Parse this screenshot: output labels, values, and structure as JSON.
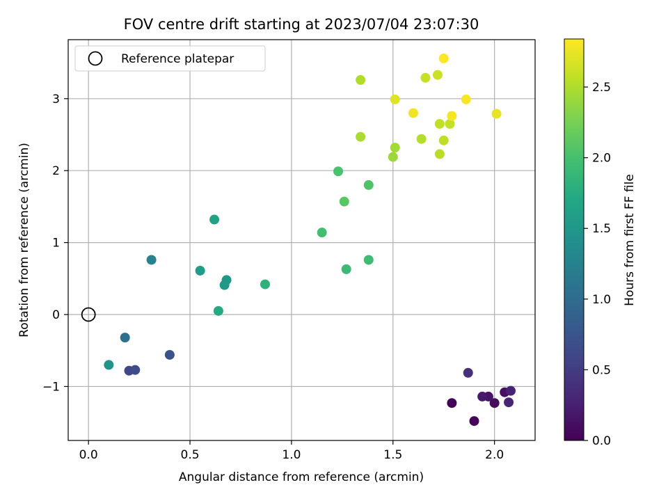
{
  "chart_data": {
    "type": "scatter",
    "title": "FOV centre drift starting at 2023/07/04 23:07:30",
    "xlabel": "Angular distance from reference (arcmin)",
    "ylabel": "Rotation from reference (arcmin)",
    "xlim": [
      -0.1,
      2.2
    ],
    "ylim": [
      -1.75,
      3.82
    ],
    "xticks": [
      0.0,
      0.5,
      1.0,
      1.5,
      2.0
    ],
    "xtick_labels": [
      "0.0",
      "0.5",
      "1.0",
      "1.5",
      "2.0"
    ],
    "yticks": [
      -1,
      0,
      1,
      2,
      3
    ],
    "ytick_labels": [
      "−1",
      "0",
      "1",
      "2",
      "3"
    ],
    "grid": true,
    "legend": {
      "position": "top-left",
      "entries": [
        "Reference platepar"
      ]
    },
    "reference_point": {
      "x": 0.0,
      "y": 0.0
    },
    "colorbar": {
      "label": "Hours from first FF file",
      "colormap": "viridis",
      "range": [
        0.0,
        2.84
      ],
      "ticks": [
        0.0,
        0.5,
        1.0,
        1.5,
        2.0,
        2.5
      ],
      "tick_labels": [
        "0.0",
        "0.5",
        "1.0",
        "1.5",
        "2.0",
        "2.5"
      ]
    },
    "points": [
      {
        "x": 1.79,
        "y": -1.23,
        "c": 0.02
      },
      {
        "x": 1.9,
        "y": -1.48,
        "c": 0.05
      },
      {
        "x": 2.0,
        "y": -1.23,
        "c": 0.08
      },
      {
        "x": 2.05,
        "y": -1.08,
        "c": 0.12
      },
      {
        "x": 1.97,
        "y": -1.14,
        "c": 0.16
      },
      {
        "x": 1.94,
        "y": -1.14,
        "c": 0.2
      },
      {
        "x": 2.08,
        "y": -1.06,
        "c": 0.27
      },
      {
        "x": 2.07,
        "y": -1.22,
        "c": 0.3
      },
      {
        "x": 1.87,
        "y": -0.81,
        "c": 0.38
      },
      {
        "x": 0.2,
        "y": -0.78,
        "c": 0.6
      },
      {
        "x": 0.23,
        "y": -0.77,
        "c": 0.65
      },
      {
        "x": 0.4,
        "y": -0.56,
        "c": 0.72
      },
      {
        "x": 0.18,
        "y": -0.32,
        "c": 1.05
      },
      {
        "x": 0.31,
        "y": 0.76,
        "c": 1.25
      },
      {
        "x": 0.1,
        "y": -0.7,
        "c": 1.45
      },
      {
        "x": 0.68,
        "y": 0.48,
        "c": 1.5
      },
      {
        "x": 0.67,
        "y": 0.41,
        "c": 1.52
      },
      {
        "x": 0.55,
        "y": 0.61,
        "c": 1.56
      },
      {
        "x": 0.62,
        "y": 1.32,
        "c": 1.62
      },
      {
        "x": 0.64,
        "y": 0.05,
        "c": 1.72
      },
      {
        "x": 0.87,
        "y": 0.42,
        "c": 1.82
      },
      {
        "x": 1.27,
        "y": 0.63,
        "c": 1.92
      },
      {
        "x": 1.38,
        "y": 0.76,
        "c": 1.95
      },
      {
        "x": 1.15,
        "y": 1.14,
        "c": 1.98
      },
      {
        "x": 1.23,
        "y": 1.99,
        "c": 2.02
      },
      {
        "x": 1.38,
        "y": 1.8,
        "c": 2.05
      },
      {
        "x": 1.26,
        "y": 1.57,
        "c": 2.1
      },
      {
        "x": 1.5,
        "y": 2.19,
        "c": 2.42
      },
      {
        "x": 1.51,
        "y": 2.32,
        "c": 2.45
      },
      {
        "x": 1.34,
        "y": 2.47,
        "c": 2.47
      },
      {
        "x": 1.34,
        "y": 3.26,
        "c": 2.5
      },
      {
        "x": 1.64,
        "y": 2.44,
        "c": 2.52
      },
      {
        "x": 1.73,
        "y": 2.23,
        "c": 2.54
      },
      {
        "x": 1.75,
        "y": 2.42,
        "c": 2.56
      },
      {
        "x": 1.73,
        "y": 2.65,
        "c": 2.57
      },
      {
        "x": 1.78,
        "y": 2.65,
        "c": 2.58
      },
      {
        "x": 1.66,
        "y": 3.29,
        "c": 2.6
      },
      {
        "x": 1.72,
        "y": 3.33,
        "c": 2.62
      },
      {
        "x": 1.51,
        "y": 2.99,
        "c": 2.7
      },
      {
        "x": 2.01,
        "y": 2.79,
        "c": 2.74
      },
      {
        "x": 1.6,
        "y": 2.8,
        "c": 2.78
      },
      {
        "x": 1.79,
        "y": 2.76,
        "c": 2.8
      },
      {
        "x": 1.86,
        "y": 2.99,
        "c": 2.82
      },
      {
        "x": 1.75,
        "y": 3.56,
        "c": 2.84
      }
    ]
  }
}
